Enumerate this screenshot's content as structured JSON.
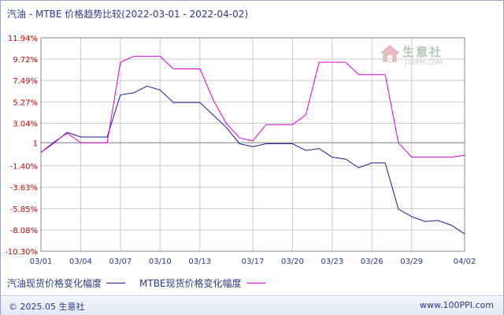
{
  "header": {
    "title": "汽油 - MTBE 价格趋势比较(2022-03-01 - 2022-04-02)"
  },
  "watermark": {
    "name": "生意社",
    "url": "100PPI.COM"
  },
  "footer": {
    "copyright": "© 2025.05 生意社",
    "url": "www.100PPI.com"
  },
  "colors": {
    "gasoline": "#1a1a9a",
    "mtbe": "#dd00dd",
    "grid": "#c8c8c8",
    "axis_label": "#cc0000"
  },
  "chart_data": {
    "type": "line",
    "title": "汽油 - MTBE 价格趋势比较(2022-03-01 - 2022-04-02)",
    "y_ticks": [
      {
        "label": "11.94%",
        "value": 11.94
      },
      {
        "label": "9.72%",
        "value": 9.72
      },
      {
        "label": "7.49%",
        "value": 7.49
      },
      {
        "label": "5.27%",
        "value": 5.27
      },
      {
        "label": "3.04%",
        "value": 3.04
      },
      {
        "label": "1",
        "value": 1.0
      },
      {
        "label": "-1.40%",
        "value": -1.4
      },
      {
        "label": "-3.63%",
        "value": -3.63
      },
      {
        "label": "-5.85%",
        "value": -5.85
      },
      {
        "label": "-8.08%",
        "value": -8.08
      },
      {
        "label": "-10.30%",
        "value": -10.3
      }
    ],
    "ylim": [
      -10.3,
      11.94
    ],
    "baseline": 1.0,
    "x_ticks": [
      {
        "label": "03/01",
        "index": 0
      },
      {
        "label": "03/04",
        "index": 3
      },
      {
        "label": "03/07",
        "index": 6
      },
      {
        "label": "03/10",
        "index": 9
      },
      {
        "label": "03/13",
        "index": 12
      },
      {
        "label": "03/17",
        "index": 16
      },
      {
        "label": "03/20",
        "index": 19
      },
      {
        "label": "03/23",
        "index": 22
      },
      {
        "label": "03/26",
        "index": 25
      },
      {
        "label": "03/29",
        "index": 28
      },
      {
        "label": "04/02",
        "index": 32
      }
    ],
    "x_range": [
      0,
      32
    ],
    "grid": true,
    "series": [
      {
        "name": "汽油现货价格变化幅度",
        "color": "#1a1a9a",
        "points": [
          [
            0,
            0.0
          ],
          [
            1,
            1.0
          ],
          [
            2,
            2.1
          ],
          [
            3,
            1.6
          ],
          [
            4,
            1.6
          ],
          [
            5,
            1.6
          ],
          [
            6,
            6.0
          ],
          [
            7,
            6.2
          ],
          [
            8,
            6.9
          ],
          [
            9,
            6.5
          ],
          [
            10,
            5.2
          ],
          [
            11,
            5.2
          ],
          [
            12,
            5.2
          ],
          [
            13,
            3.9
          ],
          [
            14,
            2.6
          ],
          [
            15,
            0.9
          ],
          [
            16,
            0.6
          ],
          [
            17,
            0.9
          ],
          [
            18,
            0.9
          ],
          [
            19,
            0.9
          ],
          [
            20,
            0.2
          ],
          [
            21,
            0.4
          ],
          [
            22,
            -0.5
          ],
          [
            23,
            -0.7
          ],
          [
            24,
            -1.6
          ],
          [
            25,
            -1.1
          ],
          [
            26,
            -1.1
          ],
          [
            27,
            -5.9
          ],
          [
            28,
            -6.7
          ],
          [
            29,
            -7.2
          ],
          [
            30,
            -7.1
          ],
          [
            31,
            -7.6
          ],
          [
            32,
            -8.5
          ]
        ]
      },
      {
        "name": "MTBE现货价格变化幅度",
        "color": "#dd00dd",
        "points": [
          [
            0,
            0.0
          ],
          [
            1,
            1.1
          ],
          [
            2,
            2.0
          ],
          [
            3,
            1.0
          ],
          [
            4,
            1.0
          ],
          [
            5,
            1.0
          ],
          [
            6,
            9.4
          ],
          [
            7,
            10.0
          ],
          [
            8,
            10.0
          ],
          [
            9,
            10.0
          ],
          [
            10,
            8.7
          ],
          [
            11,
            8.7
          ],
          [
            12,
            8.7
          ],
          [
            13,
            5.5
          ],
          [
            14,
            3.0
          ],
          [
            15,
            1.5
          ],
          [
            16,
            1.2
          ],
          [
            17,
            2.9
          ],
          [
            18,
            2.9
          ],
          [
            19,
            2.9
          ],
          [
            20,
            3.9
          ],
          [
            21,
            9.4
          ],
          [
            22,
            9.4
          ],
          [
            23,
            9.4
          ],
          [
            24,
            8.1
          ],
          [
            25,
            8.1
          ],
          [
            26,
            8.1
          ],
          [
            27,
            1.0
          ],
          [
            28,
            -0.5
          ],
          [
            29,
            -0.5
          ],
          [
            30,
            -0.5
          ],
          [
            31,
            -0.5
          ],
          [
            32,
            -0.3
          ]
        ]
      }
    ],
    "legend_position": "bottom-left"
  }
}
